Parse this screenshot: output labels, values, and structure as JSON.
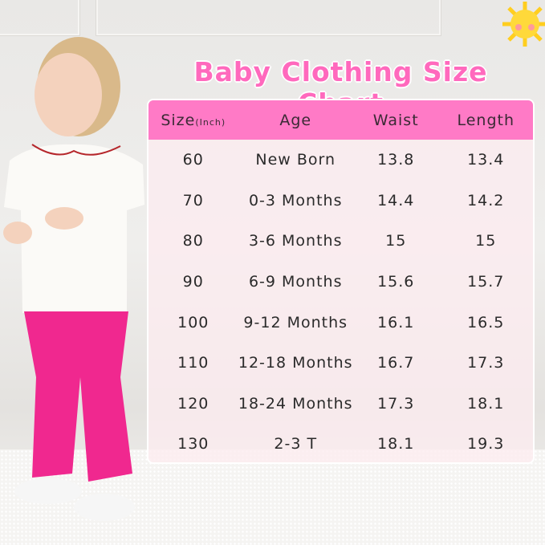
{
  "title": "Baby Clothing Size Chart",
  "table": {
    "headers": {
      "size": "Size",
      "size_unit": "(Inch)",
      "age": "Age",
      "waist": "Waist",
      "length": "Length"
    },
    "rows": [
      {
        "size": "60",
        "age": "New Born",
        "waist": "13.8",
        "length": "13.4"
      },
      {
        "size": "70",
        "age": "0-3 Months",
        "waist": "14.4",
        "length": "14.2"
      },
      {
        "size": "80",
        "age": "3-6 Months",
        "waist": "15",
        "length": "15"
      },
      {
        "size": "90",
        "age": "6-9 Months",
        "waist": "15.6",
        "length": "15.7"
      },
      {
        "size": "100",
        "age": "9-12 Months",
        "waist": "16.1",
        "length": "16.5"
      },
      {
        "size": "110",
        "age": "12-18 Months",
        "waist": "16.7",
        "length": "17.3"
      },
      {
        "size": "120",
        "age": "18-24 Months",
        "waist": "17.3",
        "length": "18.1"
      },
      {
        "size": "130",
        "age": "2-3 T",
        "waist": "18.1",
        "length": "19.3"
      }
    ]
  },
  "colors": {
    "accent": "#ff7ac6",
    "title": "#ff69bd",
    "pants": "#f0288f"
  },
  "icons": [
    "sun-icon"
  ]
}
